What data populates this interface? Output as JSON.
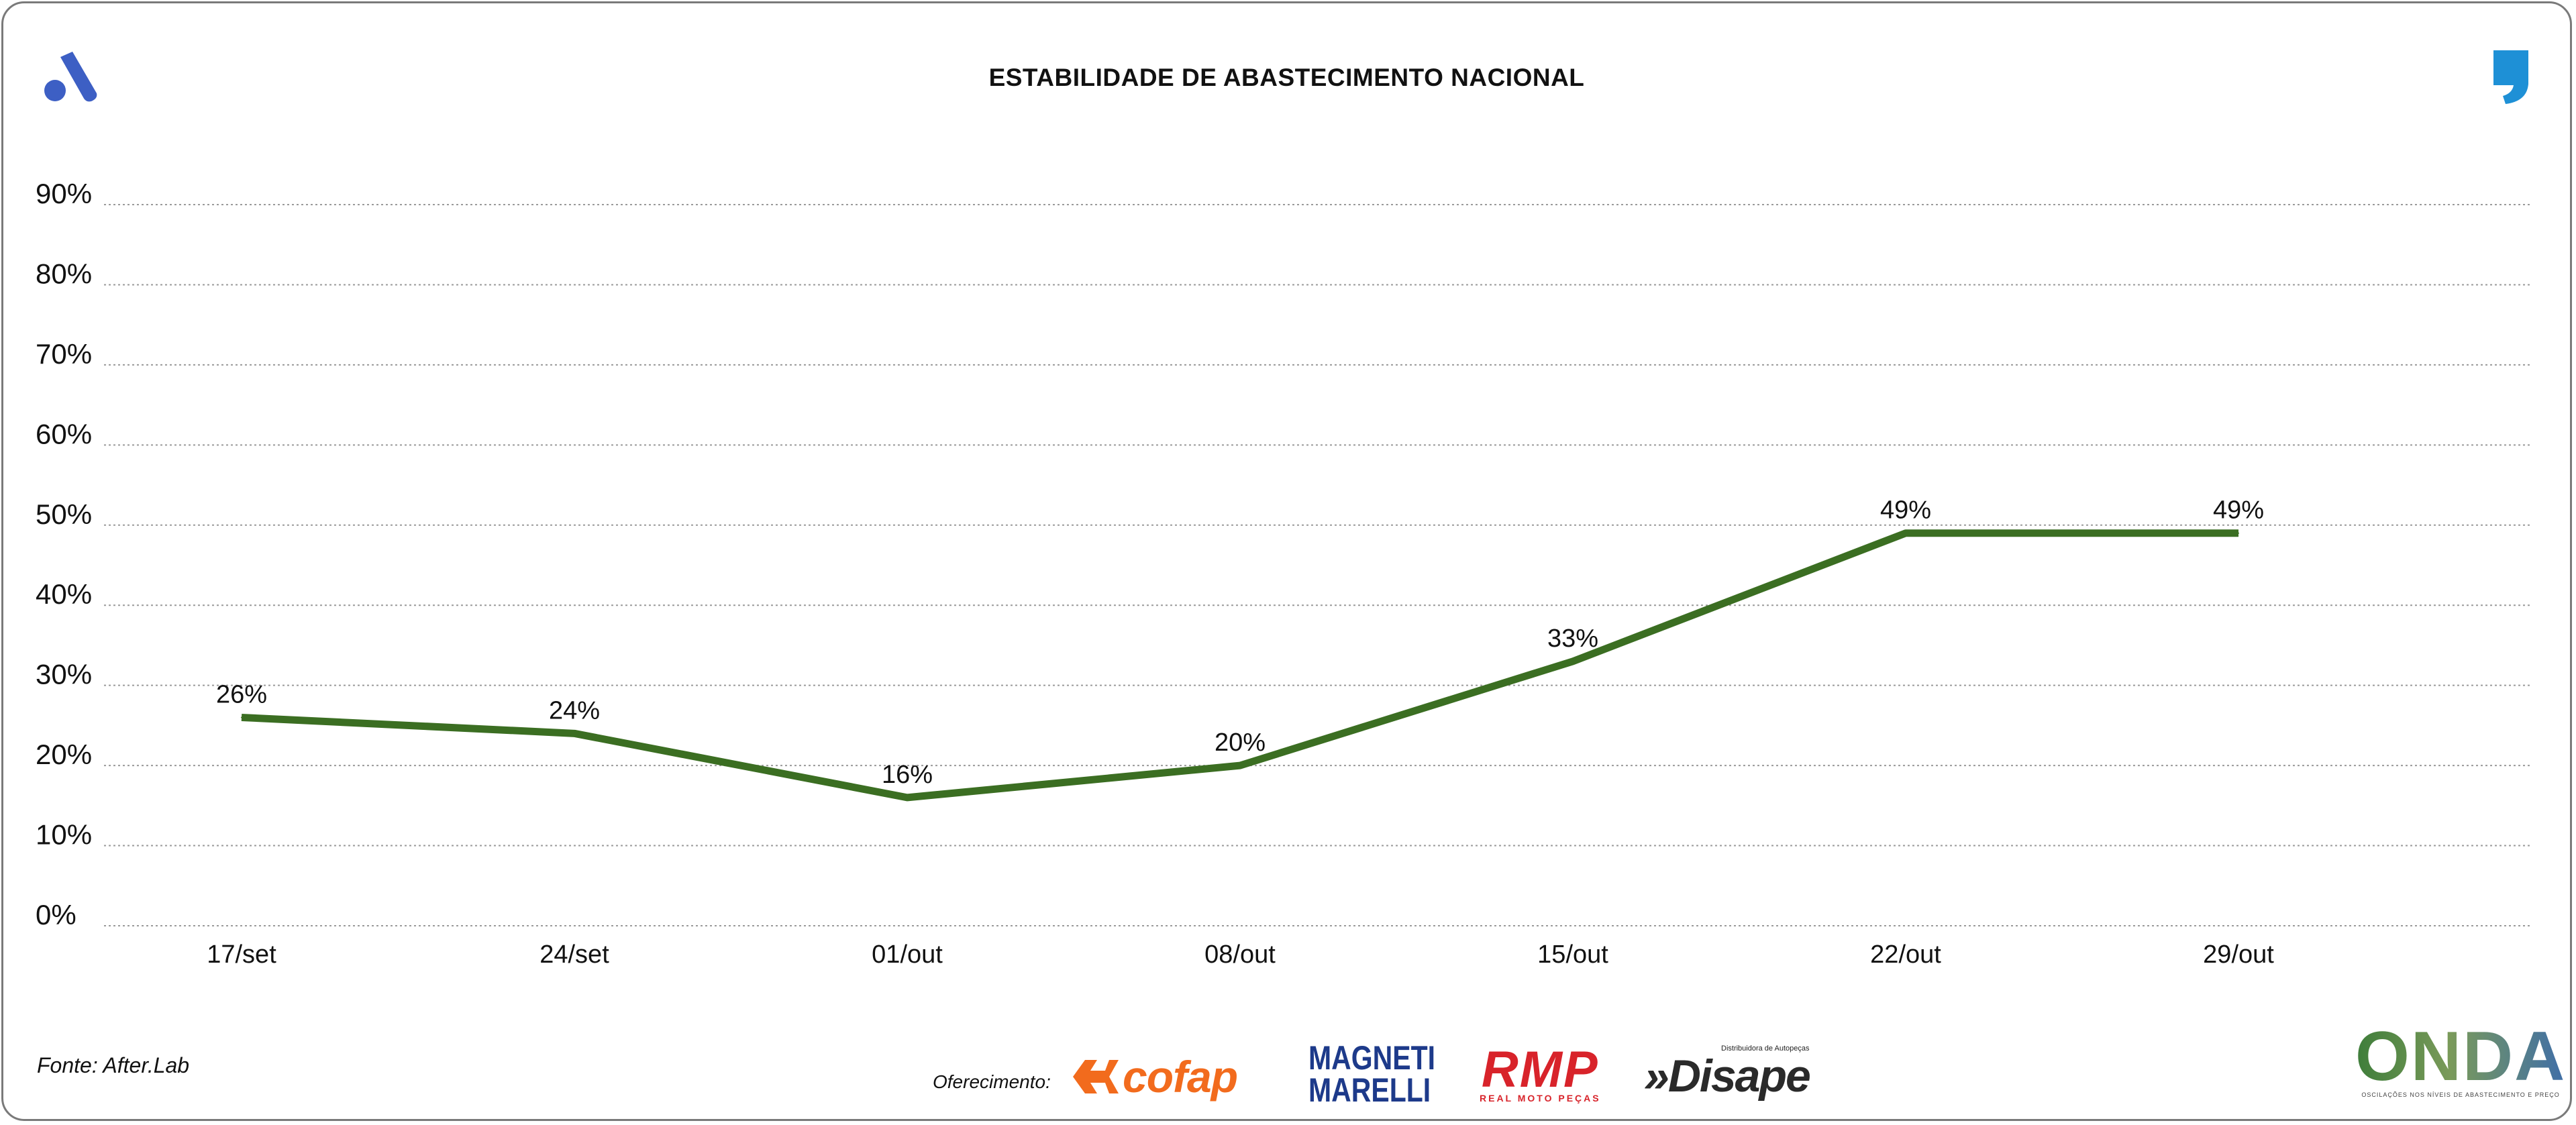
{
  "header": {
    "title": "ESTABILIDADE DE ABASTECIMENTO NACIONAL"
  },
  "footer": {
    "source": "Fonte: After.Lab",
    "sponsor_label": "Oferecimento:",
    "sponsors": {
      "cofap": "cofap",
      "magneti_line1": "MAGNETI",
      "magneti_line2": "MARELLI",
      "rmp_main": "RMP",
      "rmp_sub": "REAL MOTO PEÇAS",
      "disape_small": "Distribuidora de Autopeças",
      "disape_main": "»Disape"
    },
    "onda_main": "ONDA",
    "onda_sub": "OSCILAÇÕES NOS NÍVEIS DE ABASTECIMENTO E PREÇO"
  },
  "colors": {
    "line": "#3b6e22",
    "grid": "#9a9a9a",
    "brand_blue": "#3d5fc4",
    "brand_quote": "#1e90d6"
  },
  "chart_data": {
    "type": "line",
    "title": "ESTABILIDADE DE ABASTECIMENTO NACIONAL",
    "xlabel": "",
    "ylabel": "",
    "ylim": [
      0,
      90
    ],
    "yticks": [
      "0%",
      "10%",
      "20%",
      "30%",
      "40%",
      "50%",
      "60%",
      "70%",
      "80%",
      "90%"
    ],
    "categories": [
      "17/set",
      "24/set",
      "01/out",
      "08/out",
      "15/out",
      "22/out",
      "29/out"
    ],
    "series": [
      {
        "name": "Estabilidade de abastecimento",
        "values": [
          26,
          24,
          16,
          20,
          33,
          49,
          49
        ],
        "labels": [
          "26%",
          "24%",
          "16%",
          "20%",
          "33%",
          "49%",
          "49%"
        ]
      }
    ],
    "grid": true,
    "legend": "none"
  }
}
